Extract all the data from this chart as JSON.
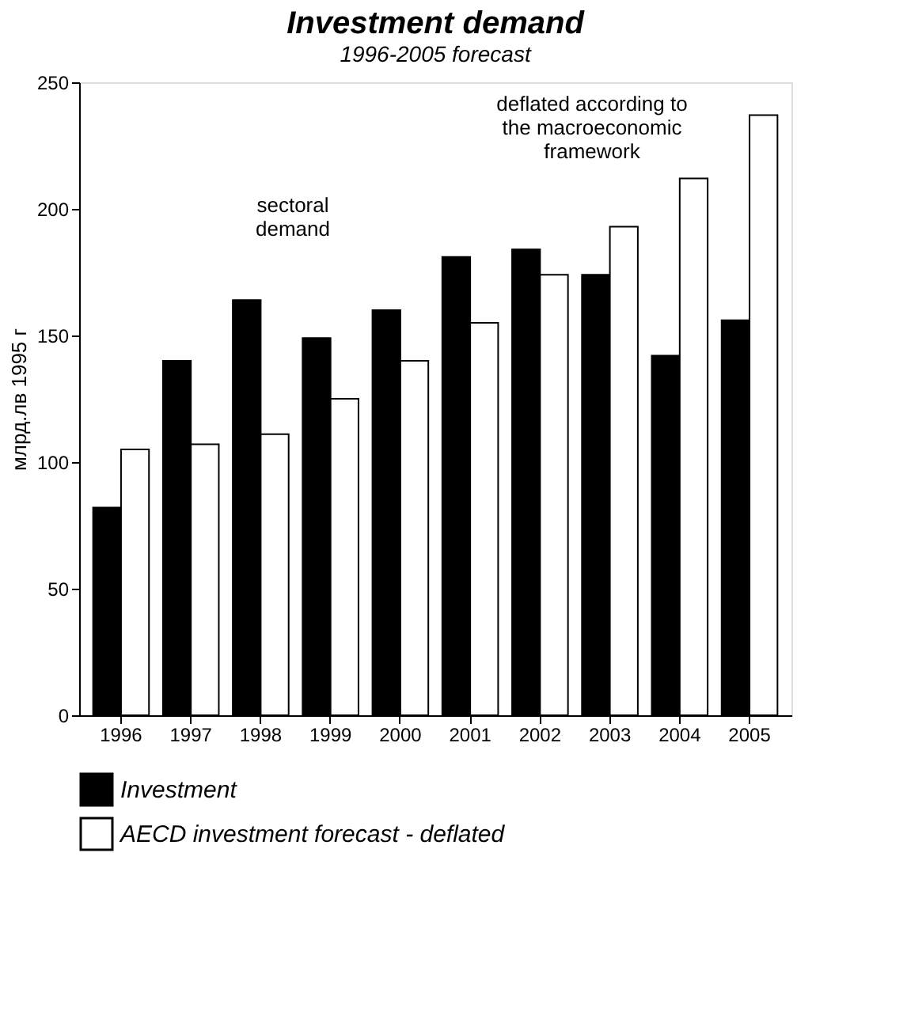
{
  "chart_data": {
    "type": "bar",
    "title": "Investment demand",
    "subtitle": "1996-2005 forecast",
    "ylabel": "млрд.лв 1995 г",
    "categories": [
      "1996",
      "1997",
      "1998",
      "1999",
      "2000",
      "2001",
      "2002",
      "2003",
      "2004",
      "2005"
    ],
    "series": [
      {
        "name": "Investment",
        "color": "#000000",
        "values": [
          82,
          140,
          164,
          149,
          160,
          181,
          184,
          174,
          142,
          156
        ]
      },
      {
        "name": "AECD investment forecast - deflated",
        "color": "#ffffff",
        "values": [
          105,
          107,
          111,
          125,
          140,
          155,
          174,
          193,
          212,
          237
        ]
      }
    ],
    "ylim": [
      0,
      250
    ],
    "yticks": [
      0,
      50,
      100,
      150,
      200,
      250
    ],
    "grid": false,
    "legend": "bottom",
    "annotations": [
      "sectoral demand",
      "deflated according to the macroeconomic framework"
    ]
  }
}
